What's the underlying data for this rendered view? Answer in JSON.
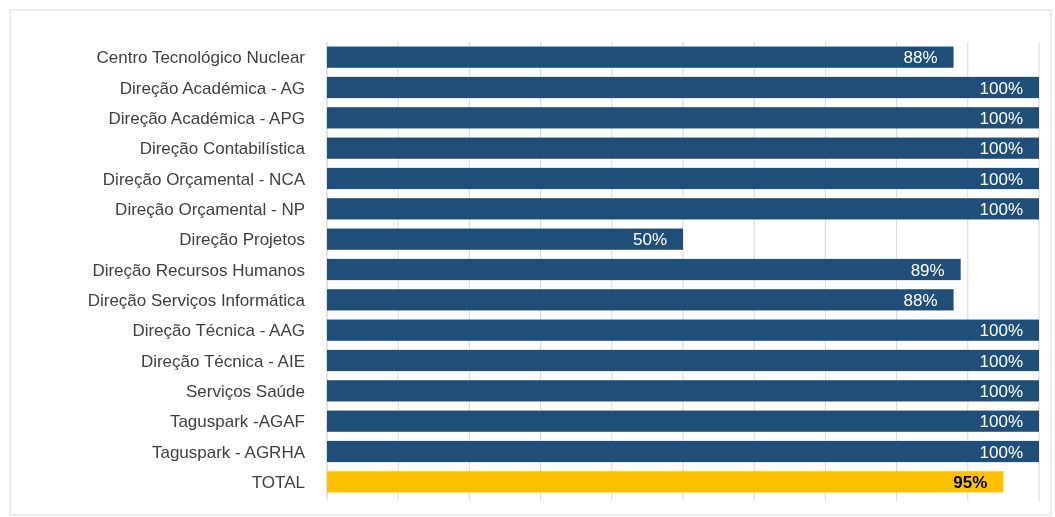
{
  "chart_data": {
    "type": "bar",
    "orientation": "horizontal",
    "categories": [
      "Centro Tecnológico Nuclear",
      "Direção Académica - AG",
      "Direção Académica - APG",
      "Direção Contabilística",
      "Direção Orçamental - NCA",
      "Direção Orçamental - NP",
      "Direção Projetos",
      "Direção Recursos Humanos",
      "Direção Serviços Informática",
      "Direção Técnica - AAG",
      "Direção Técnica - AIE",
      "Serviços Saúde",
      "Taguspark -AGAF",
      "Taguspark - AGRHA",
      "TOTAL"
    ],
    "values": [
      88,
      100,
      100,
      100,
      100,
      100,
      50,
      89,
      88,
      100,
      100,
      100,
      100,
      100,
      95
    ],
    "colors": [
      "#1f4e79",
      "#1f4e79",
      "#1f4e79",
      "#1f4e79",
      "#1f4e79",
      "#1f4e79",
      "#1f4e79",
      "#1f4e79",
      "#1f4e79",
      "#1f4e79",
      "#1f4e79",
      "#1f4e79",
      "#1f4e79",
      "#1f4e79",
      "#ffc000"
    ],
    "value_labels": [
      "88%",
      "100%",
      "100%",
      "100%",
      "100%",
      "100%",
      "50%",
      "89%",
      "88%",
      "100%",
      "100%",
      "100%",
      "100%",
      "100%",
      "95%"
    ],
    "xlim": [
      0,
      100
    ],
    "xticks": [
      {
        "value": 0,
        "label": null
      },
      {
        "value": 10,
        "label": null
      },
      {
        "value": 20,
        "label": null
      },
      {
        "value": 30,
        "label": null
      },
      {
        "value": 40,
        "label": null
      },
      {
        "value": 50,
        "label": null
      },
      {
        "value": 60,
        "label": null
      },
      {
        "value": 70,
        "label": null
      },
      {
        "value": 80,
        "label": null
      },
      {
        "value": 90,
        "label": null
      },
      {
        "value": 100,
        "label": null
      }
    ],
    "grid": "x",
    "tick_labels": "y"
  }
}
